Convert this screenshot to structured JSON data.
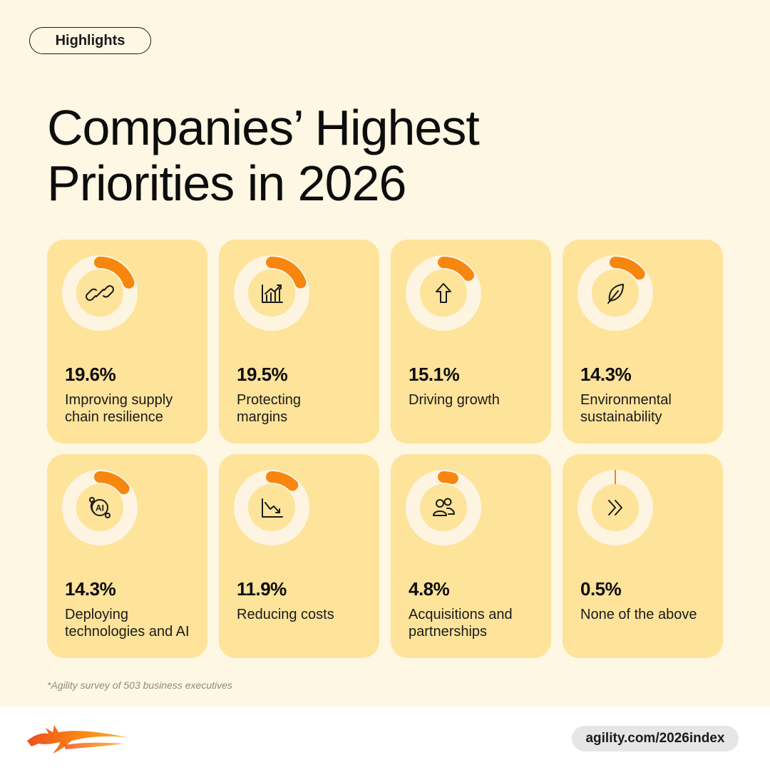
{
  "header": {
    "badge": "Highlights"
  },
  "title": {
    "line1": "Companies’ Highest",
    "line2": "Priorities in 2026"
  },
  "chart_data": {
    "type": "pie",
    "title": "Companies’ Highest Priorities in 2026",
    "unit": "%",
    "categories": [
      "Improving supply chain resilience",
      "Protecting margins",
      "Driving growth",
      "Environmental sustainability",
      "Deploying technologies and AI",
      "Reducing costs",
      "Acquisitions and partnerships",
      "None of the above"
    ],
    "values": [
      19.6,
      19.5,
      15.1,
      14.3,
      14.3,
      11.9,
      4.8,
      0.5
    ]
  },
  "cards": [
    {
      "pct_text": "19.6%",
      "value": 19.6,
      "label_lines": [
        "Improving supply",
        "chain resilience"
      ],
      "icon": "link-icon"
    },
    {
      "pct_text": "19.5%",
      "value": 19.5,
      "label_lines": [
        "Protecting",
        "margins"
      ],
      "icon": "bar-chart-growth-icon"
    },
    {
      "pct_text": "15.1%",
      "value": 15.1,
      "label_lines": [
        "Driving growth"
      ],
      "icon": "arrow-up-icon"
    },
    {
      "pct_text": "14.3%",
      "value": 14.3,
      "label_lines": [
        "Environmental",
        "sustainability"
      ],
      "icon": "leaf-icon"
    },
    {
      "pct_text": "14.3%",
      "value": 14.3,
      "label_lines": [
        "Deploying",
        "technologies and AI"
      ],
      "icon": "ai-orbit-icon"
    },
    {
      "pct_text": "11.9%",
      "value": 11.9,
      "label_lines": [
        "Reducing costs"
      ],
      "icon": "trend-down-icon"
    },
    {
      "pct_text": "4.8%",
      "value": 4.8,
      "label_lines": [
        "Acquisitions and",
        "partnerships"
      ],
      "icon": "people-icon"
    },
    {
      "pct_text": "0.5%",
      "value": 0.5,
      "label_lines": [
        "None of the above"
      ],
      "icon": "double-chevron-icon"
    }
  ],
  "footnote": "*Agility survey of 503 business executives",
  "footer": {
    "url": "agility.com/2026index",
    "logo_icon": "agility-dragon-logo"
  },
  "colors": {
    "background": "#fdf7e3",
    "card": "#fee39b",
    "ring_track": "#fdf5e1",
    "ring_fill": "#f7860f",
    "text": "#0d0d0d"
  }
}
